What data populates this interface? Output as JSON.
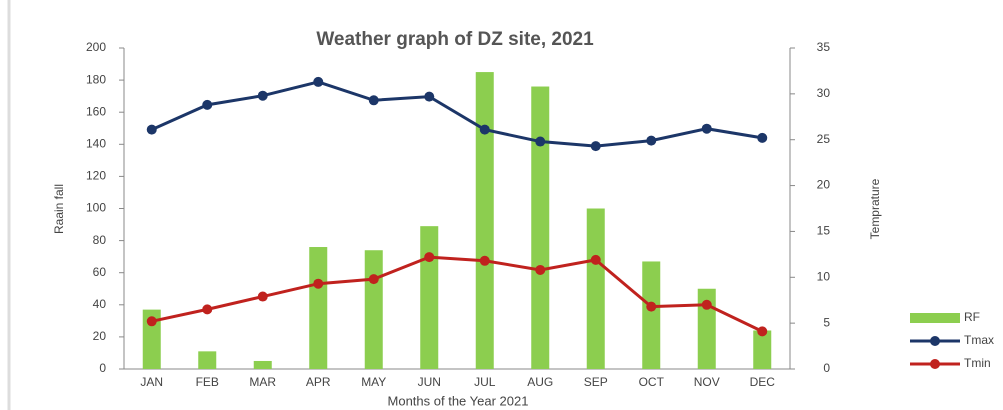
{
  "chart_data": {
    "type": "bar-line",
    "title": "Weather graph of DZ site,  2021",
    "x_label": "Months of the Year 2021",
    "y_label": "Raain fall",
    "y2_label": "Temprature",
    "categories": [
      "JAN",
      "FEB",
      "MAR",
      "APR",
      "MAY",
      "JUN",
      "JUL",
      "AUG",
      "SEP",
      "OCT",
      "NOV",
      "DEC"
    ],
    "series": [
      {
        "name": "RF",
        "type": "bar",
        "color": "#8cce4f",
        "values": [
          37,
          11,
          5,
          76,
          74,
          89,
          185,
          176,
          100,
          67,
          50,
          24
        ]
      },
      {
        "name": "Tmax",
        "type": "line",
        "axis": "y2",
        "color": "#1c3668",
        "values": [
          26.1,
          28.8,
          29.8,
          31.3,
          29.3,
          29.7,
          26.1,
          24.8,
          24.3,
          24.9,
          26.2,
          25.2
        ]
      },
      {
        "name": "Tmin",
        "type": "line",
        "axis": "y2",
        "color": "#c0221e",
        "values": [
          5.2,
          6.5,
          7.9,
          9.3,
          9.8,
          12.2,
          11.8,
          10.8,
          11.9,
          6.8,
          7.0,
          4.1
        ]
      }
    ],
    "ylim": [
      0,
      200
    ],
    "yticks": [
      0,
      20,
      40,
      60,
      80,
      100,
      120,
      140,
      160,
      180,
      200
    ],
    "y2lim": [
      0,
      35
    ],
    "y2ticks": [
      0,
      5,
      10,
      15,
      20,
      25,
      30,
      35
    ],
    "legend": "bottom-right",
    "grid": false
  }
}
